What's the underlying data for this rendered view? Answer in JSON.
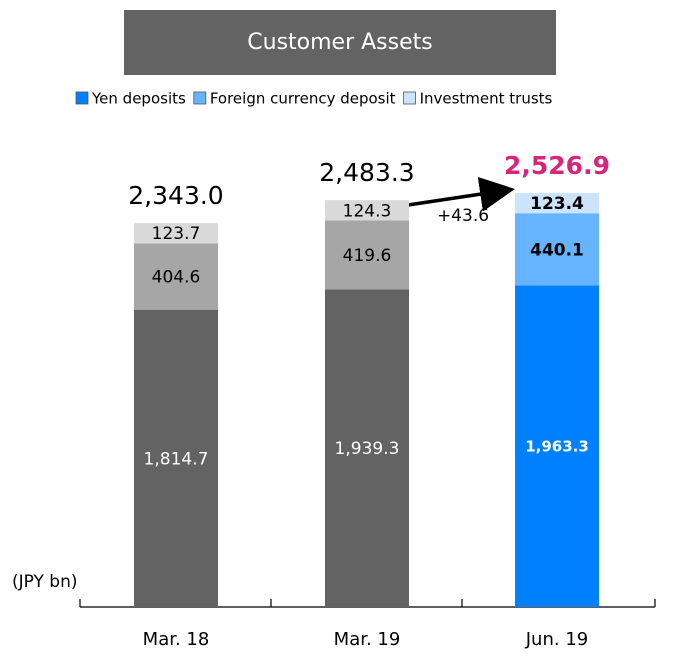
{
  "chart_data": {
    "type": "bar",
    "stacked": true,
    "title": "Customer Assets",
    "unit_label": "(JPY bn)",
    "categories": [
      "Mar. 18",
      "Mar. 19",
      "Jun. 19"
    ],
    "series": [
      {
        "name": "Yen deposits",
        "color": "#0080ff",
        "colors": [
          "#636363",
          "#636363",
          "#0080ff"
        ],
        "values": [
          1814.7,
          1939.3,
          1963.3
        ],
        "value_labels": [
          "1,814.7",
          "1,939.3",
          "1,963.3"
        ]
      },
      {
        "name": "Foreign currency deposit",
        "color": "#66b3ff",
        "colors": [
          "#a6a6a6",
          "#a6a6a6",
          "#66b3ff"
        ],
        "values": [
          404.6,
          419.6,
          440.1
        ]
      },
      {
        "name": "Investment trusts",
        "color": "#cce4fb",
        "colors": [
          "#d9d9d9",
          "#d9d9d9",
          "#cce4fb"
        ],
        "values": [
          123.7,
          124.3,
          123.4
        ]
      }
    ],
    "totals": [
      2343.0,
      2483.3,
      2526.9
    ],
    "total_labels": [
      "2,343.0",
      "2,483.3",
      "2,526.9"
    ],
    "total_colors": [
      "#000000",
      "#000000",
      "#d6257a"
    ],
    "annotations": [
      "+43.6"
    ],
    "ylim": [
      0,
      2600
    ]
  }
}
